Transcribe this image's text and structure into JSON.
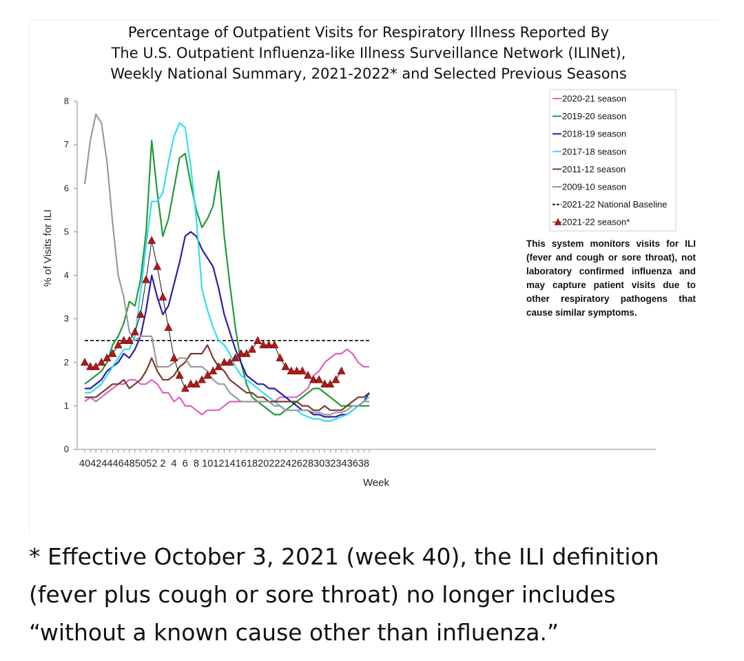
{
  "chart_data": {
    "type": "line",
    "title_lines": [
      "Percentage of Outpatient Visits for Respiratory Illness Reported By",
      "The U.S. Outpatient Influenza-like Illness Surveillance Network (ILINet),",
      "Weekly National Summary, 2021-2022* and Selected Previous Seasons"
    ],
    "xlabel": "Week",
    "ylabel": "% of Visits for ILI",
    "ylim": [
      0,
      8
    ],
    "yticks": [
      "0",
      "1",
      "2",
      "3",
      "4",
      "5",
      "6",
      "7",
      "8"
    ],
    "xtick_labels": [
      "40",
      "42",
      "44",
      "46",
      "48",
      "50",
      "52",
      "2",
      "4",
      "6",
      "8",
      "10",
      "12",
      "14",
      "16",
      "18",
      "20",
      "22",
      "24",
      "26",
      "28",
      "30",
      "32",
      "34",
      "36",
      "38"
    ],
    "baseline": {
      "name": "2021-22 National Baseline",
      "value": 2.5,
      "color": "#000000"
    },
    "legend_position": "top-right",
    "legend": [
      {
        "label": "2020-21 season",
        "color": "#e060c0",
        "marker": "line"
      },
      {
        "label": "2019-20 season",
        "color": "#1f9a3a",
        "marker": "line"
      },
      {
        "label": "2018-19 season",
        "color": "#2a1aa8",
        "marker": "line"
      },
      {
        "label": "2017-18 season",
        "color": "#33ddee",
        "marker": "line"
      },
      {
        "label": "2011-12 season",
        "color": "#7a3a2e",
        "marker": "line"
      },
      {
        "label": "2009-10 season",
        "color": "#9a9a9a",
        "marker": "line"
      },
      {
        "label": "2021-22 National Baseline",
        "color": "#000000",
        "marker": "dash"
      },
      {
        "label": "2021-22 season*",
        "color": "#b01818",
        "marker": "triangle"
      }
    ],
    "series": [
      {
        "name": "2020-21 season",
        "color": "#e060c0",
        "values": [
          1.1,
          1.2,
          1.1,
          1.2,
          1.3,
          1.4,
          1.5,
          1.5,
          1.6,
          1.6,
          1.5,
          1.5,
          1.6,
          1.5,
          1.3,
          1.3,
          1.1,
          1.2,
          1.0,
          1.0,
          0.9,
          0.8,
          0.9,
          0.9,
          0.9,
          1.0,
          1.1,
          1.1,
          1.1,
          1.1,
          1.1,
          1.1,
          1.1,
          1.1,
          1.1,
          1.2,
          1.2,
          1.2,
          1.2,
          1.3,
          1.4,
          1.7,
          1.8,
          2.0,
          2.1,
          2.2,
          2.2,
          2.3,
          2.2,
          2.0,
          1.9,
          1.9
        ]
      },
      {
        "name": "2019-20 season",
        "color": "#1f9a3a",
        "values": [
          1.5,
          1.6,
          1.7,
          1.8,
          2.0,
          2.4,
          2.6,
          2.9,
          3.4,
          3.3,
          3.9,
          5.0,
          7.1,
          5.9,
          4.9,
          5.3,
          6.0,
          6.7,
          6.8,
          6.1,
          5.5,
          5.1,
          5.3,
          5.6,
          6.4,
          4.9,
          3.8,
          2.8,
          2.0,
          1.5,
          1.2,
          1.1,
          1.0,
          0.9,
          0.8,
          0.8,
          0.9,
          1.0,
          1.1,
          1.2,
          1.3,
          1.4,
          1.4,
          1.3,
          1.2,
          1.1,
          1.0,
          1.0,
          1.0,
          1.0,
          1.0,
          1.0
        ]
      },
      {
        "name": "2018-19 season",
        "color": "#2a1aa8",
        "values": [
          1.4,
          1.4,
          1.5,
          1.6,
          1.8,
          1.9,
          2.0,
          2.2,
          2.1,
          2.3,
          2.6,
          3.2,
          4.0,
          3.5,
          3.1,
          3.3,
          3.8,
          4.3,
          4.9,
          5.0,
          4.9,
          4.6,
          4.4,
          4.2,
          3.7,
          3.1,
          2.7,
          2.3,
          2.0,
          1.7,
          1.6,
          1.5,
          1.5,
          1.4,
          1.4,
          1.3,
          1.2,
          1.1,
          1.0,
          0.9,
          0.9,
          0.8,
          0.8,
          0.75,
          0.75,
          0.75,
          0.8,
          0.8,
          0.9,
          1.0,
          1.1,
          1.3
        ]
      },
      {
        "name": "2017-18 season",
        "color": "#33ddee",
        "values": [
          1.3,
          1.3,
          1.4,
          1.5,
          1.7,
          1.9,
          2.1,
          2.3,
          2.3,
          2.6,
          3.6,
          4.7,
          5.7,
          5.7,
          5.9,
          6.6,
          7.2,
          7.5,
          7.4,
          6.5,
          5.3,
          3.7,
          3.2,
          2.8,
          2.5,
          2.4,
          2.2,
          1.9,
          1.7,
          1.6,
          1.5,
          1.4,
          1.3,
          1.2,
          1.1,
          1.0,
          0.9,
          0.9,
          0.9,
          0.8,
          0.75,
          0.7,
          0.7,
          0.65,
          0.65,
          0.7,
          0.75,
          0.8,
          0.9,
          1.0,
          1.1,
          1.2
        ]
      },
      {
        "name": "2011-12 season",
        "color": "#7a3a2e",
        "values": [
          1.2,
          1.2,
          1.2,
          1.3,
          1.4,
          1.5,
          1.5,
          1.6,
          1.4,
          1.5,
          1.6,
          1.8,
          2.1,
          1.8,
          1.6,
          1.6,
          1.7,
          1.9,
          2.0,
          2.2,
          2.2,
          2.2,
          2.4,
          2.1,
          1.9,
          1.8,
          1.6,
          1.5,
          1.4,
          1.3,
          1.3,
          1.2,
          1.2,
          1.1,
          1.1,
          1.1,
          1.1,
          1.1,
          1.1,
          1.0,
          1.0,
          0.9,
          0.9,
          1.0,
          0.9,
          0.9,
          0.9,
          1.0,
          1.1,
          1.2,
          1.2,
          1.3
        ]
      },
      {
        "name": "2009-10 season",
        "color": "#9a9a9a",
        "values": [
          6.1,
          7.1,
          7.7,
          7.5,
          6.6,
          5.2,
          4.0,
          3.5,
          2.7,
          2.5,
          2.6,
          2.6,
          2.6,
          1.9,
          1.9,
          1.9,
          2.0,
          2.1,
          2.1,
          1.9,
          1.9,
          1.9,
          1.8,
          1.6,
          1.5,
          1.5,
          1.3,
          1.2,
          1.1,
          1.1,
          1.1,
          1.1,
          1.1,
          1.1,
          1.0,
          1.0,
          0.9,
          0.9,
          0.9,
          0.9,
          0.9,
          0.85,
          0.85,
          0.8,
          0.8,
          0.85,
          0.85,
          0.9,
          1.0,
          1.0,
          1.1,
          1.1
        ]
      },
      {
        "name": "2021-22 season*",
        "color": "#b01818",
        "marker": "triangle",
        "values": [
          2.0,
          1.9,
          1.9,
          2.0,
          2.1,
          2.2,
          2.4,
          2.5,
          2.5,
          2.7,
          3.1,
          3.9,
          4.8,
          4.2,
          3.5,
          2.8,
          2.1,
          1.7,
          1.4,
          1.5,
          1.5,
          1.6,
          1.7,
          1.8,
          1.9,
          2.0,
          2.0,
          2.1,
          2.2,
          2.2,
          2.3,
          2.5,
          2.4,
          2.4,
          2.4,
          2.1,
          1.9,
          1.8,
          1.8,
          1.8,
          1.7,
          1.6,
          1.6,
          1.5,
          1.5,
          1.6,
          1.8
        ]
      }
    ]
  },
  "note_text": "This system monitors visits for ILI (fever and cough or sore throat), not laboratory confirmed influenza and may capture patient visits due to other respiratory pathogens that cause similar symptoms.",
  "footnote_lines": [
    "* Effective October 3, 2021 (week 40), the ILI definition",
    "(fever plus cough or sore throat) no longer includes",
    "“without a known cause other than influenza.”"
  ]
}
